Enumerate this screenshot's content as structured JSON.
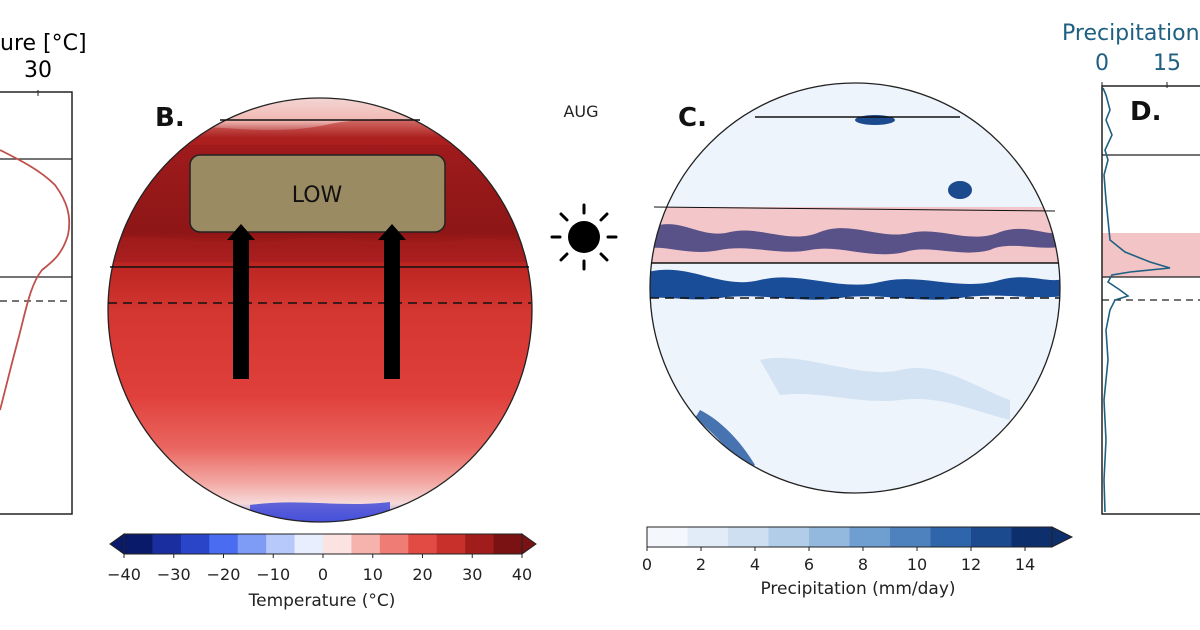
{
  "panels": {
    "a": {
      "axis_title": "ure [°C]",
      "tick_label": "30",
      "axis_color": "#c0504d"
    },
    "b": {
      "letter": "B.",
      "low_label": "LOW",
      "low_box_color": "#9b8b62"
    },
    "month": "AUG",
    "c": {
      "letter": "C."
    },
    "d": {
      "letter": "D.",
      "axis_title": "Precipitation",
      "tick_labels": [
        "0",
        "15"
      ],
      "axis_color": "#1f6082",
      "band_color": "#f2c4c6"
    }
  },
  "colorbar_temperature": {
    "title": "Temperature (°C)",
    "ticks": [
      "−40",
      "−30",
      "−20",
      "−10",
      "0",
      "10",
      "20",
      "30",
      "40"
    ],
    "colors": [
      "#0a1a6b",
      "#1a2ea0",
      "#2a45c8",
      "#4a6cf0",
      "#7e9cf5",
      "#b7c8fa",
      "#e8eefd",
      "#fbe3e1",
      "#f6b2ad",
      "#ef7d76",
      "#e24b44",
      "#c8302b",
      "#a11d1c",
      "#7a1214"
    ]
  },
  "colorbar_precipitation": {
    "title": "Precipitation (mm/day)",
    "ticks": [
      "0",
      "2",
      "4",
      "6",
      "8",
      "10",
      "12",
      "14"
    ],
    "colors": [
      "#f4f8fd",
      "#e2ecf8",
      "#cddff1",
      "#b2cde8",
      "#93b9de",
      "#6f9fd0",
      "#4d82bf",
      "#2f65ab",
      "#1b4a8f",
      "#0d2f6b"
    ]
  }
}
